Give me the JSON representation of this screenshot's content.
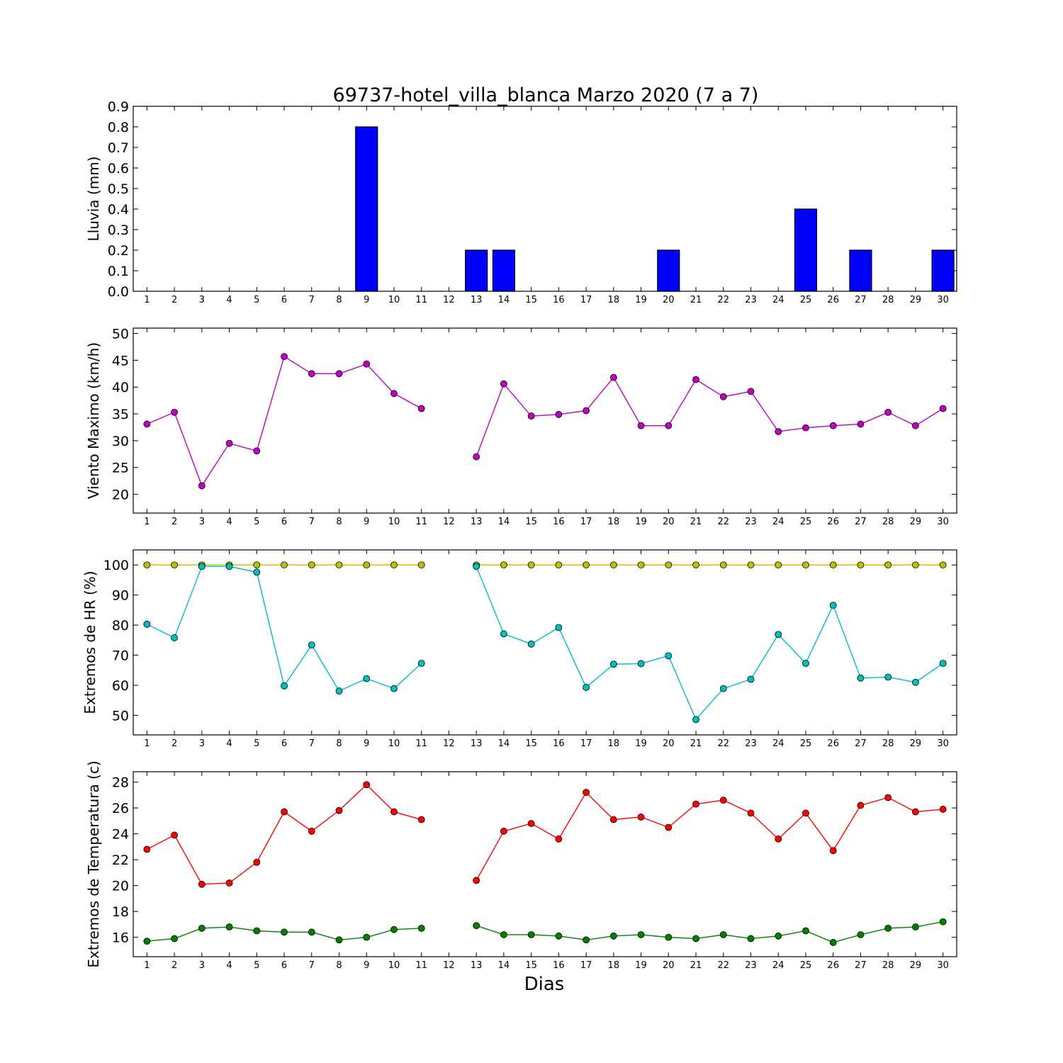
{
  "title": "69737-hotel_villa_blanca Marzo 2020  (7 a 7)",
  "xlabel": "Dias",
  "x_ticks": [
    "1",
    "2",
    "3",
    "4",
    "5",
    "6",
    "7",
    "8",
    "9",
    "10",
    "11",
    "12",
    "13",
    "14",
    "15",
    "16",
    "17",
    "18",
    "19",
    "20",
    "21",
    "22",
    "23",
    "24",
    "25",
    "26",
    "27",
    "28",
    "29",
    "30"
  ],
  "chart_data": [
    {
      "type": "bar",
      "ylabel": "Lluvia (mm)",
      "ylim": [
        0,
        0.9
      ],
      "y_ticks": [
        "0.0",
        "0.1",
        "0.2",
        "0.3",
        "0.4",
        "0.5",
        "0.6",
        "0.7",
        "0.8",
        "0.9"
      ],
      "categories": [
        1,
        2,
        3,
        4,
        5,
        6,
        7,
        8,
        9,
        10,
        11,
        12,
        13,
        14,
        15,
        16,
        17,
        18,
        19,
        20,
        21,
        22,
        23,
        24,
        25,
        26,
        27,
        28,
        29,
        30
      ],
      "values": [
        0,
        0,
        0,
        0,
        0,
        0,
        0,
        0,
        0.8,
        0,
        0,
        null,
        0.2,
        0.2,
        0,
        0,
        0,
        0,
        0,
        0.2,
        0,
        0,
        0,
        0,
        0.4,
        0,
        0.2,
        0,
        0,
        0.2
      ],
      "colors": {
        "bar": "#0000ff"
      }
    },
    {
      "type": "line",
      "ylabel": "Viento Maximo (km/h)",
      "ylim": [
        16.5,
        51
      ],
      "y_ticks": [
        "20",
        "25",
        "30",
        "35",
        "40",
        "45",
        "50"
      ],
      "x": [
        1,
        2,
        3,
        4,
        5,
        6,
        7,
        8,
        9,
        10,
        11,
        12,
        13,
        14,
        15,
        16,
        17,
        18,
        19,
        20,
        21,
        22,
        23,
        24,
        25,
        26,
        27,
        28,
        29,
        30
      ],
      "series": [
        {
          "values": [
            33.1,
            35.3,
            21.6,
            29.5,
            28.1,
            45.7,
            42.5,
            42.5,
            44.3,
            38.8,
            36.0,
            null,
            27.0,
            40.6,
            34.6,
            34.9,
            35.6,
            41.8,
            32.8,
            32.8,
            41.4,
            38.2,
            39.2,
            31.7,
            32.4,
            32.8,
            33.1,
            35.3,
            32.8,
            36.0
          ],
          "color": "#bf00bf"
        }
      ]
    },
    {
      "type": "line",
      "ylabel": "Extremos de HR (%)",
      "ylim": [
        43.5,
        105
      ],
      "y_ticks": [
        "50",
        "60",
        "70",
        "80",
        "90",
        "100"
      ],
      "x": [
        1,
        2,
        3,
        4,
        5,
        6,
        7,
        8,
        9,
        10,
        11,
        12,
        13,
        14,
        15,
        16,
        17,
        18,
        19,
        20,
        21,
        22,
        23,
        24,
        25,
        26,
        27,
        28,
        29,
        30
      ],
      "series": [
        {
          "values": [
            100,
            100,
            100,
            100,
            100,
            100,
            100,
            100,
            100,
            100,
            100,
            null,
            100,
            100,
            100,
            100,
            100,
            100,
            100,
            100,
            100,
            100,
            100,
            100,
            100,
            100,
            100,
            100,
            100,
            100
          ],
          "color": "#bfbf00"
        },
        {
          "values": [
            80.3,
            75.8,
            99.5,
            99.5,
            97.6,
            59.8,
            73.4,
            58.1,
            62.2,
            58.9,
            67.3,
            null,
            99.5,
            77.1,
            73.7,
            79.2,
            59.3,
            67.0,
            67.2,
            69.8,
            48.6,
            58.9,
            62.0,
            76.9,
            67.3,
            86.6,
            62.4,
            62.7,
            61.0,
            67.3
          ],
          "color": "#00bfbf"
        }
      ]
    },
    {
      "type": "line",
      "ylabel": "Extremos de Temperatura (c)",
      "ylim": [
        14.5,
        28.8
      ],
      "y_ticks": [
        "16",
        "18",
        "20",
        "22",
        "24",
        "26",
        "28"
      ],
      "x": [
        1,
        2,
        3,
        4,
        5,
        6,
        7,
        8,
        9,
        10,
        11,
        12,
        13,
        14,
        15,
        16,
        17,
        18,
        19,
        20,
        21,
        22,
        23,
        24,
        25,
        26,
        27,
        28,
        29,
        30
      ],
      "series": [
        {
          "values": [
            22.8,
            23.9,
            20.1,
            20.2,
            21.8,
            25.7,
            24.2,
            25.8,
            27.8,
            25.7,
            25.1,
            null,
            20.4,
            24.2,
            24.8,
            23.6,
            27.2,
            25.1,
            25.3,
            24.5,
            26.3,
            26.6,
            25.6,
            23.6,
            25.6,
            22.7,
            26.2,
            26.8,
            25.7,
            25.9
          ],
          "color": "#ff0000"
        },
        {
          "values": [
            15.7,
            15.9,
            16.7,
            16.8,
            16.5,
            16.4,
            16.4,
            15.8,
            16.0,
            16.6,
            16.7,
            null,
            16.9,
            16.2,
            16.2,
            16.1,
            15.8,
            16.1,
            16.2,
            16.0,
            15.9,
            16.2,
            15.9,
            16.1,
            16.5,
            15.6,
            16.2,
            16.7,
            16.8,
            17.2
          ],
          "color": "#008000"
        }
      ]
    }
  ]
}
